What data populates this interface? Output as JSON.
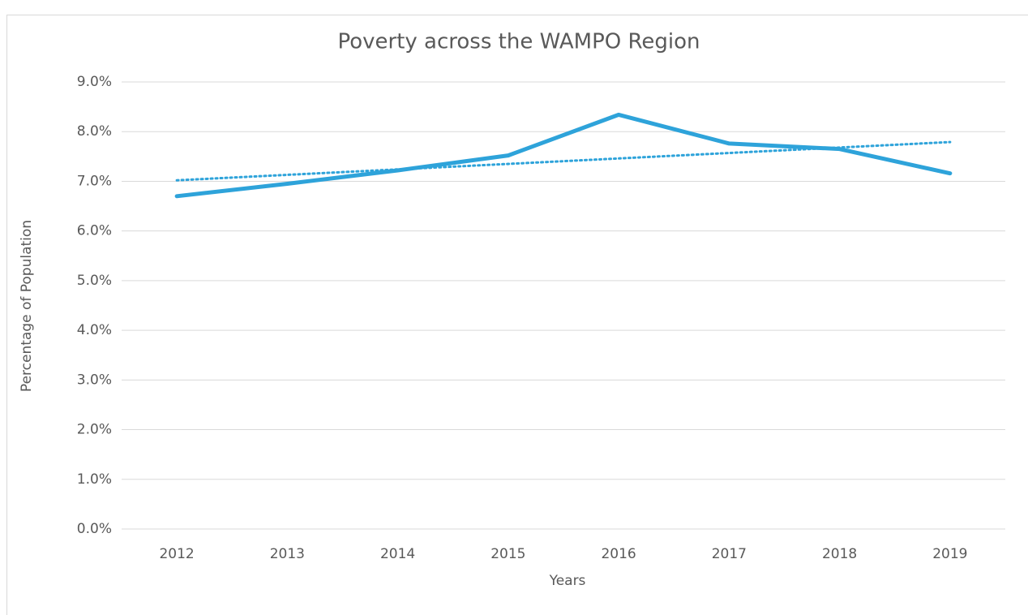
{
  "chart_data": {
    "type": "line",
    "title": "Poverty across the WAMPO Region",
    "x_label": "Years",
    "y_label": "Percentage of Population",
    "categories": [
      "2012",
      "2013",
      "2014",
      "2015",
      "2016",
      "2017",
      "2018",
      "2019"
    ],
    "series": [
      {
        "color": "#2ea3da",
        "values": [
          6.7,
          6.95,
          7.22,
          7.52,
          8.34,
          7.76,
          7.65,
          7.16
        ]
      }
    ],
    "trendline": {
      "color": "#2ea3da",
      "style": "dotted",
      "values": [
        7.02,
        7.79
      ]
    },
    "ylim": [
      0,
      9
    ],
    "yticks": [
      {
        "value": 0,
        "label": "0.0%"
      },
      {
        "value": 1,
        "label": "1.0%"
      },
      {
        "value": 2,
        "label": "2.0%"
      },
      {
        "value": 3,
        "label": "3.0%"
      },
      {
        "value": 4,
        "label": "4.0%"
      },
      {
        "value": 5,
        "label": "5.0%"
      },
      {
        "value": 6,
        "label": "6.0%"
      },
      {
        "value": 7,
        "label": "7.0%"
      },
      {
        "value": 8,
        "label": "8.0%"
      },
      {
        "value": 9,
        "label": "9.0%"
      }
    ],
    "grid": true
  }
}
